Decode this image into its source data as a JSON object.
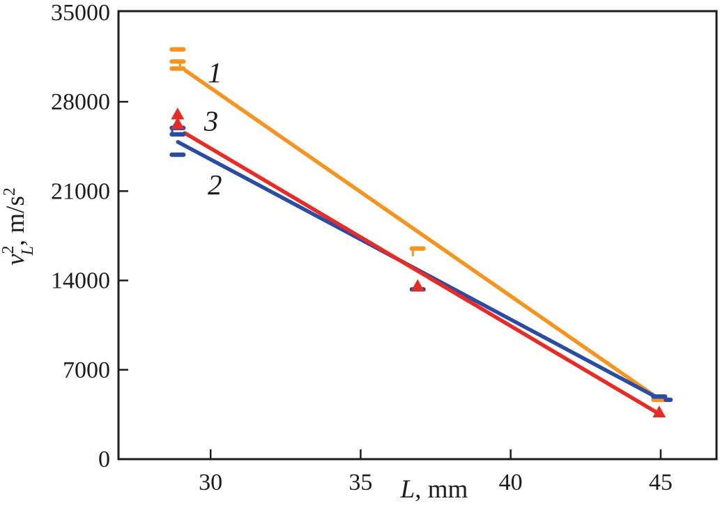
{
  "figure": {
    "description": "Scatter plot with linear fits of squared longitudinal velocity versus length",
    "background_color": "#ffffff",
    "ink_color": "#1c1c1c"
  },
  "chart_data": {
    "type": "scatter",
    "title": "",
    "xlabel_var": "L",
    "xlabel_unit": ", mm",
    "ylabel_var": "v",
    "ylabel_sub": "L",
    "ylabel_sup": "2",
    "ylabel_unit": ", m/s",
    "ylabel_unit_sup": "2",
    "xlim": [
      26.93,
      46.86
    ],
    "ylim": [
      0,
      35100
    ],
    "x_ticks": [
      30,
      35,
      40,
      45
    ],
    "y_ticks": [
      0,
      7000,
      14000,
      21000,
      28000,
      35000
    ],
    "y_ticks_marked": [
      7000,
      14000,
      21000,
      28000
    ],
    "grid": false,
    "frame": true,
    "legend_position": "inline-labels",
    "series": [
      {
        "name": "1",
        "color": "#F7941E",
        "marker": "dash",
        "points": [
          [
            28.9,
            32100
          ],
          [
            28.9,
            31150
          ],
          [
            28.9,
            30600
          ],
          [
            36.9,
            16500
          ],
          [
            44.95,
            4650
          ]
        ],
        "fit_line": [
          [
            29.16,
            30450
          ],
          [
            44.83,
            4900
          ]
        ],
        "whiskers": [
          {
            "x": 28.98,
            "y1": 31150,
            "y2": 30600
          },
          {
            "x": 36.74,
            "y1": 16650,
            "y2": 15900
          }
        ],
        "label_pos": [
          30.14,
          30300
        ]
      },
      {
        "name": "2",
        "color": "#2A4DA4",
        "marker": "dash",
        "points": [
          [
            28.9,
            25950
          ],
          [
            28.9,
            25450
          ],
          [
            28.9,
            23850
          ],
          [
            36.9,
            13300
          ],
          [
            44.95,
            4900
          ],
          [
            45.25,
            4650,
            13
          ]
        ],
        "fit_line": [
          [
            28.91,
            24850
          ],
          [
            44.98,
            4700
          ]
        ],
        "whiskers": [
          {
            "x": 28.72,
            "y1": 25950,
            "y2": 25450
          }
        ],
        "label_pos": [
          30.14,
          21500
        ]
      },
      {
        "name": "3",
        "color": "#EA2A24",
        "marker": "triangle",
        "points": [
          [
            28.9,
            27000
          ],
          [
            28.9,
            26250
          ],
          [
            36.9,
            13550
          ],
          [
            44.95,
            3650
          ]
        ],
        "fit_line": [
          [
            29.14,
            25550
          ],
          [
            44.98,
            3500
          ]
        ],
        "whiskers": [],
        "label_pos": [
          30.02,
          26500
        ]
      }
    ]
  }
}
